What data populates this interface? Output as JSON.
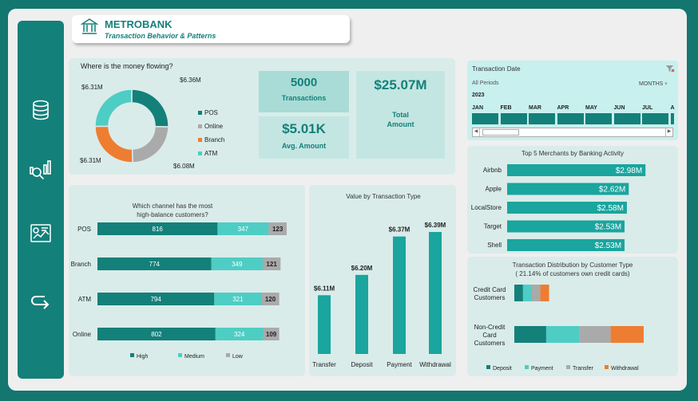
{
  "colors": {
    "teal": "#14807a",
    "medium": "#4ecdc4",
    "gray": "#aaaaaa",
    "orange": "#ee7d31",
    "bright_teal": "#1aa59e"
  },
  "sidebar": {
    "icons": [
      "database-icon",
      "analytics-icon",
      "dashboard-report-icon",
      "arrow-return-icon"
    ]
  },
  "header": {
    "title": "METROBANK",
    "subtitle": "Transaction Behavior & Patterns"
  },
  "donut": {
    "title": "Where is the money flowing?",
    "segments": [
      {
        "name": "POS",
        "value": 6.36,
        "label": "$6.36M",
        "color": "#14807a"
      },
      {
        "name": "Online",
        "value": 6.08,
        "label": "$6.08M",
        "color": "#aaaaaa"
      },
      {
        "name": "Branch",
        "value": 6.31,
        "label": "$6.31M",
        "color": "#ee7d31"
      },
      {
        "name": "ATM",
        "value": 6.31,
        "label": "$6.31M",
        "color": "#4ecdc4"
      }
    ]
  },
  "kpis": {
    "transactions_value": "5000",
    "transactions_label": "Transactions",
    "avg_value": "$5.01K",
    "avg_label": "Avg. Amount",
    "total_value": "$25.07M",
    "total_label_1": "Total",
    "total_label_2": "Amount"
  },
  "slicer": {
    "title": "Transaction Date",
    "period": "All Periods",
    "granularity": "MONTHS",
    "year": "2023",
    "months": [
      "JAN",
      "FEB",
      "MAR",
      "APR",
      "MAY",
      "JUN",
      "JUL",
      "A"
    ]
  },
  "chart_data": [
    {
      "type": "pie",
      "title": "Where is the money flowing?",
      "categories": [
        "POS",
        "Online",
        "Branch",
        "ATM"
      ],
      "values": [
        6.36,
        6.08,
        6.31,
        6.31
      ],
      "unit": "$M"
    },
    {
      "type": "bar",
      "orientation": "horizontal",
      "title": "Top 5 Merchants by Banking Activity",
      "categories": [
        "Airbnb",
        "Apple",
        "LocalStore",
        "Target",
        "Shell"
      ],
      "values": [
        2.98,
        2.62,
        2.58,
        2.53,
        2.53
      ],
      "labels": [
        "$2.98M",
        "$2.62M",
        "$2.58M",
        "$2.53M",
        "$2.53M"
      ],
      "xlim": [
        0,
        3.2
      ]
    },
    {
      "type": "bar",
      "orientation": "horizontal",
      "stacked": true,
      "title": "Which channel has the most high-balance customers?",
      "categories": [
        "POS",
        "Branch",
        "ATM",
        "Online"
      ],
      "series": [
        {
          "name": "High",
          "values": [
            816,
            774,
            794,
            802
          ]
        },
        {
          "name": "Medium",
          "values": [
            347,
            349,
            321,
            324
          ]
        },
        {
          "name": "Low",
          "values": [
            123,
            121,
            120,
            109
          ]
        }
      ]
    },
    {
      "type": "bar",
      "title": "Value by Transaction Type",
      "categories": [
        "Transfer",
        "Deposit",
        "Payment",
        "Withdrawal"
      ],
      "values": [
        6.11,
        6.2,
        6.37,
        6.39
      ],
      "labels": [
        "$6.11M",
        "$6.20M",
        "$6.37M",
        "$6.39M"
      ],
      "ylim": [
        5.85,
        6.45
      ]
    },
    {
      "type": "bar",
      "orientation": "horizontal",
      "stacked": true,
      "title": "Transaction Distribution by Customer Type",
      "subtitle": "( 21.14% of customers own credit cards)",
      "categories": [
        "Credit Card Customers",
        "Non-Credit Card Customers"
      ],
      "category_lines": [
        [
          "Credit Card",
          "Customers"
        ],
        [
          "Non-Credit",
          "Card",
          "Customers"
        ]
      ],
      "series": [
        {
          "name": "Deposit",
          "values": [
            1.33,
            4.87
          ]
        },
        {
          "name": "Payment",
          "values": [
            1.35,
            5.02
          ]
        },
        {
          "name": "Transfer",
          "values": [
            1.29,
            4.82
          ]
        },
        {
          "name": "Withdrawal",
          "values": [
            1.34,
            5.05
          ]
        }
      ],
      "unit": "$M"
    }
  ]
}
